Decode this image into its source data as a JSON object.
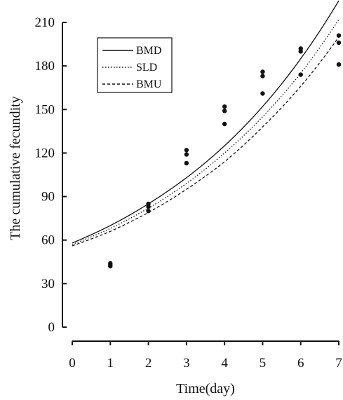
{
  "chart_data": {
    "type": "scatter",
    "xlabel": "Time(day)",
    "ylabel": "The cumulative fecundity",
    "xlim": [
      0,
      7
    ],
    "ylim": [
      0,
      210
    ],
    "xticks": [
      "0",
      "1",
      "2",
      "3",
      "4",
      "5",
      "6",
      "7"
    ],
    "yticks": [
      "0",
      "30",
      "60",
      "90",
      "120",
      "150",
      "180",
      "210"
    ],
    "legend_position": "top-left",
    "grid": false,
    "series": [
      {
        "name": "BMD",
        "line_style": "solid",
        "curve": [
          [
            0,
            58
          ],
          [
            1,
            70
          ],
          [
            2,
            85
          ],
          [
            3,
            103
          ],
          [
            4,
            125
          ],
          [
            5,
            152
          ],
          [
            6,
            185
          ],
          [
            7,
            225
          ]
        ],
        "points": [
          [
            1,
            44
          ],
          [
            2,
            85
          ],
          [
            3,
            122
          ],
          [
            4,
            152
          ],
          [
            5,
            176
          ],
          [
            6,
            192
          ],
          [
            7,
            201
          ]
        ]
      },
      {
        "name": "SLD",
        "line_style": "dotted",
        "curve": [
          [
            0,
            57
          ],
          [
            1,
            68
          ],
          [
            2,
            82
          ],
          [
            3,
            99
          ],
          [
            4,
            120
          ],
          [
            5,
            145
          ],
          [
            6,
            175
          ],
          [
            7,
            212
          ]
        ],
        "points": [
          [
            1,
            43
          ],
          [
            2,
            83
          ],
          [
            3,
            119
          ],
          [
            4,
            149
          ],
          [
            5,
            173
          ],
          [
            6,
            190
          ],
          [
            7,
            196
          ]
        ]
      },
      {
        "name": "BMU",
        "line_style": "dashed",
        "curve": [
          [
            0,
            56
          ],
          [
            1,
            66
          ],
          [
            2,
            79
          ],
          [
            3,
            95
          ],
          [
            4,
            114
          ],
          [
            5,
            138
          ],
          [
            6,
            166
          ],
          [
            7,
            200
          ]
        ],
        "points": [
          [
            1,
            42
          ],
          [
            2,
            80
          ],
          [
            3,
            113
          ],
          [
            4,
            140
          ],
          [
            5,
            161
          ],
          [
            6,
            174
          ],
          [
            7,
            181
          ]
        ]
      }
    ]
  }
}
